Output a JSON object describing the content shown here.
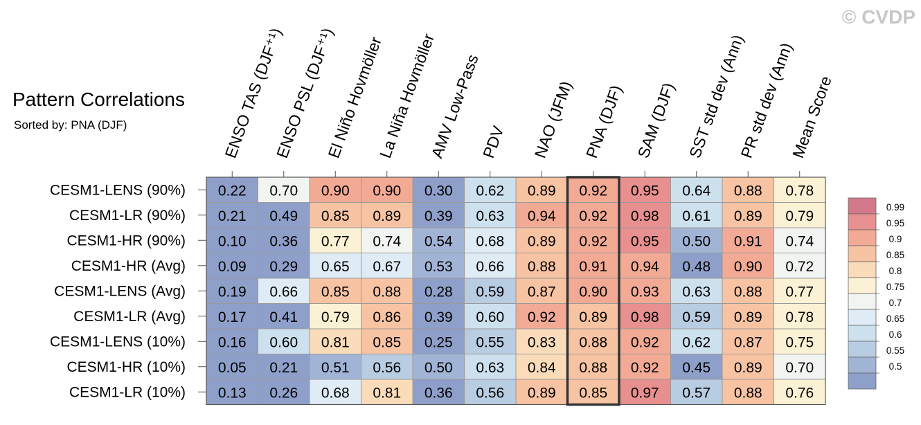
{
  "watermark": "© CVDP",
  "chart_data": {
    "type": "heatmap",
    "title": "Pattern Correlations",
    "subtitle": "Sorted by: PNA (DJF)",
    "columns": [
      "ENSO TAS (DJF⁺¹)",
      "ENSO PSL (DJF⁺¹)",
      "El Niño Hovmöller",
      "La Niña Hovmöller",
      "AMV Low-Pass",
      "PDV",
      "NAO (JFM)",
      "PNA (DJF)",
      "SAM (DJF)",
      "SST std dev (Ann)",
      "PR std dev (Ann)",
      "Mean Score"
    ],
    "rows": [
      "CESM1-LENS (90%)",
      "CESM1-LR (90%)",
      "CESM1-HR (90%)",
      "CESM1-HR (Avg)",
      "CESM1-LENS (Avg)",
      "CESM1-LR (Avg)",
      "CESM1-LENS (10%)",
      "CESM1-HR (10%)",
      "CESM1-LR (10%)"
    ],
    "values": [
      [
        "0.22",
        "0.70",
        "0.90",
        "0.90",
        "0.30",
        "0.62",
        "0.89",
        "0.92",
        "0.95",
        "0.64",
        "0.88",
        "0.78"
      ],
      [
        "0.21",
        "0.49",
        "0.85",
        "0.89",
        "0.39",
        "0.63",
        "0.94",
        "0.92",
        "0.98",
        "0.61",
        "0.89",
        "0.79"
      ],
      [
        "0.10",
        "0.36",
        "0.77",
        "0.74",
        "0.54",
        "0.68",
        "0.89",
        "0.92",
        "0.95",
        "0.50",
        "0.91",
        "0.74"
      ],
      [
        "0.09",
        "0.29",
        "0.65",
        "0.67",
        "0.53",
        "0.66",
        "0.88",
        "0.91",
        "0.94",
        "0.48",
        "0.90",
        "0.72"
      ],
      [
        "0.19",
        "0.66",
        "0.85",
        "0.88",
        "0.28",
        "0.59",
        "0.87",
        "0.90",
        "0.93",
        "0.63",
        "0.88",
        "0.77"
      ],
      [
        "0.17",
        "0.41",
        "0.79",
        "0.86",
        "0.39",
        "0.60",
        "0.92",
        "0.89",
        "0.98",
        "0.59",
        "0.89",
        "0.78"
      ],
      [
        "0.16",
        "0.60",
        "0.81",
        "0.85",
        "0.25",
        "0.55",
        "0.83",
        "0.88",
        "0.92",
        "0.62",
        "0.87",
        "0.75"
      ],
      [
        "0.05",
        "0.21",
        "0.51",
        "0.56",
        "0.50",
        "0.63",
        "0.84",
        "0.88",
        "0.92",
        "0.45",
        "0.89",
        "0.70"
      ],
      [
        "0.13",
        "0.26",
        "0.68",
        "0.81",
        "0.36",
        "0.56",
        "0.89",
        "0.85",
        "0.97",
        "0.57",
        "0.88",
        "0.76"
      ]
    ],
    "highlight_column": "PNA (DJF)",
    "colorbar": {
      "labels": [
        "0.99",
        "0.95",
        "0.9",
        "0.85",
        "0.8",
        "0.75",
        "0.7",
        "0.65",
        "0.6",
        "0.55",
        "0.5"
      ],
      "thresholds": [
        0.5,
        0.55,
        0.6,
        0.65,
        0.7,
        0.75,
        0.8,
        0.85,
        0.9,
        0.95,
        0.99
      ],
      "colors": [
        "#8e9fca",
        "#a1b4d6",
        "#b8cce2",
        "#cde0ee",
        "#dfecf5",
        "#f2f4f2",
        "#fbf1d4",
        "#fbdcba",
        "#f7c3a2",
        "#f2aa95",
        "#e8908f",
        "#d4798c"
      ]
    }
  }
}
